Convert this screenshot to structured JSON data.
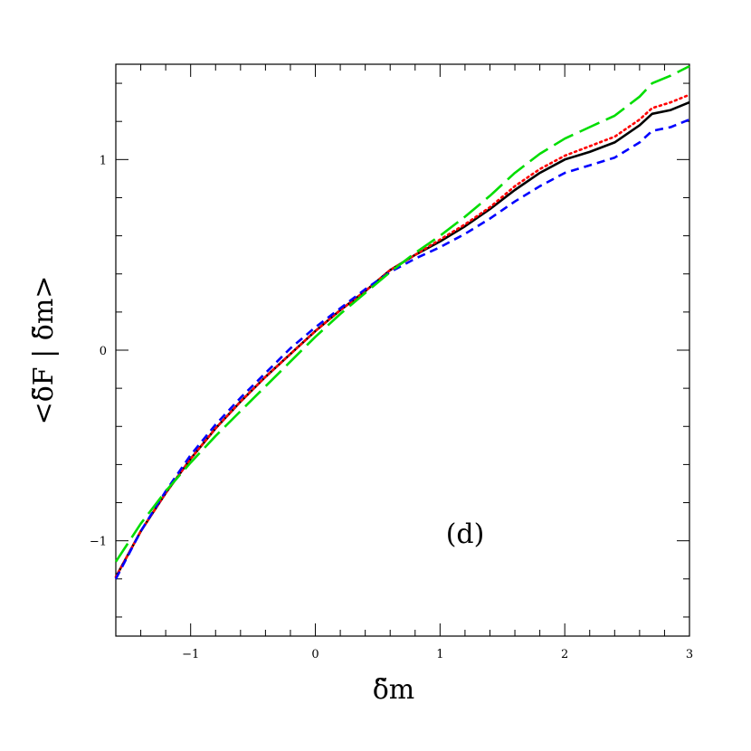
{
  "chart_data": {
    "type": "line",
    "title": "",
    "xlabel": "δ̃m",
    "ylabel": "<δ̃F | δ̃m>",
    "xlim": [
      -1.6,
      3
    ],
    "ylim": [
      -1.5,
      1.5
    ],
    "xticks": [
      -1,
      0,
      1,
      2,
      3
    ],
    "xtick_labels": [
      "−1",
      "0",
      "1",
      "2",
      "3"
    ],
    "yticks": [
      -1,
      0,
      1
    ],
    "ytick_labels": [
      "−1",
      "0",
      "1"
    ],
    "grid": false,
    "legend": "none",
    "annotation": "(d)",
    "series": [
      {
        "color": "#000000",
        "style": "solid",
        "x": [
          -1.6,
          -1.4,
          -1.2,
          -1.0,
          -0.8,
          -0.6,
          -0.4,
          -0.2,
          0.0,
          0.2,
          0.4,
          0.6,
          0.8,
          1.0,
          1.2,
          1.4,
          1.6,
          1.8,
          2.0,
          2.2,
          2.4,
          2.6,
          2.7,
          2.85,
          3.0
        ],
        "y": [
          -1.19,
          -0.95,
          -0.75,
          -0.57,
          -0.41,
          -0.27,
          -0.14,
          -0.02,
          0.1,
          0.21,
          0.31,
          0.42,
          0.5,
          0.57,
          0.65,
          0.74,
          0.84,
          0.93,
          1.0,
          1.04,
          1.09,
          1.18,
          1.24,
          1.26,
          1.3
        ]
      },
      {
        "color": "#ff0000",
        "style": "dotted",
        "x": [
          -1.6,
          -1.4,
          -1.2,
          -1.0,
          -0.8,
          -0.6,
          -0.4,
          -0.2,
          0.0,
          0.2,
          0.4,
          0.6,
          0.8,
          1.0,
          1.2,
          1.4,
          1.6,
          1.8,
          2.0,
          2.2,
          2.4,
          2.6,
          2.7,
          2.85,
          3.0
        ],
        "y": [
          -1.19,
          -0.95,
          -0.75,
          -0.57,
          -0.41,
          -0.27,
          -0.14,
          -0.02,
          0.1,
          0.21,
          0.31,
          0.42,
          0.5,
          0.58,
          0.66,
          0.75,
          0.86,
          0.95,
          1.02,
          1.07,
          1.12,
          1.21,
          1.27,
          1.3,
          1.34
        ]
      },
      {
        "color": "#0000ff",
        "style": "short-dashed",
        "x": [
          -1.6,
          -1.4,
          -1.2,
          -1.0,
          -0.8,
          -0.6,
          -0.4,
          -0.2,
          0.0,
          0.2,
          0.4,
          0.6,
          0.8,
          1.0,
          1.2,
          1.4,
          1.6,
          1.8,
          2.0,
          2.2,
          2.4,
          2.6,
          2.7,
          2.85,
          3.0
        ],
        "y": [
          -1.2,
          -0.95,
          -0.74,
          -0.55,
          -0.39,
          -0.25,
          -0.12,
          0.01,
          0.12,
          0.22,
          0.32,
          0.41,
          0.48,
          0.54,
          0.61,
          0.69,
          0.78,
          0.86,
          0.93,
          0.97,
          1.01,
          1.09,
          1.15,
          1.17,
          1.21
        ]
      },
      {
        "color": "#00dd00",
        "style": "long-dashed",
        "x": [
          -1.6,
          -1.4,
          -1.2,
          -1.0,
          -0.8,
          -0.6,
          -0.4,
          -0.2,
          0.0,
          0.2,
          0.4,
          0.6,
          0.8,
          1.0,
          1.2,
          1.4,
          1.6,
          1.8,
          2.0,
          2.2,
          2.4,
          2.6,
          2.7,
          2.85,
          3.0
        ],
        "y": [
          -1.11,
          -0.91,
          -0.74,
          -0.59,
          -0.45,
          -0.32,
          -0.19,
          -0.06,
          0.07,
          0.19,
          0.3,
          0.41,
          0.51,
          0.6,
          0.7,
          0.81,
          0.93,
          1.03,
          1.11,
          1.17,
          1.23,
          1.33,
          1.4,
          1.44,
          1.49
        ]
      }
    ]
  }
}
